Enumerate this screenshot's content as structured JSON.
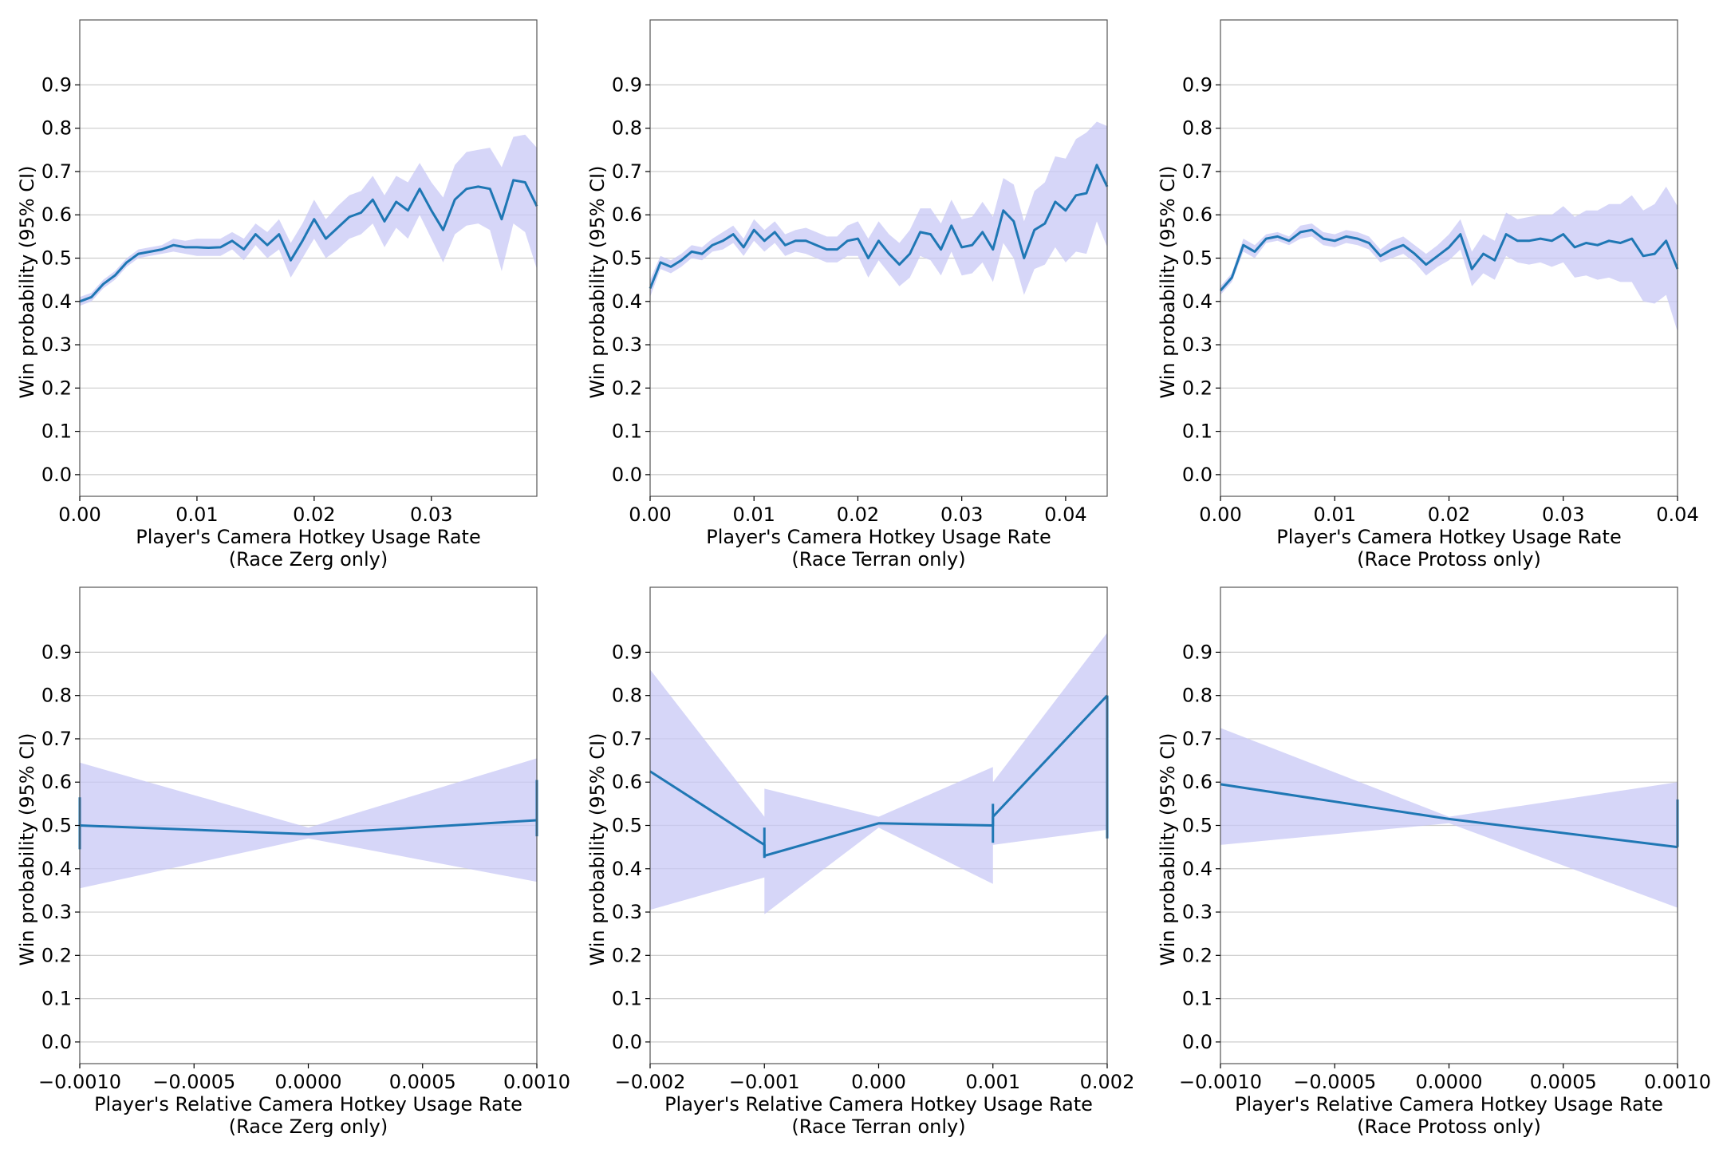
{
  "colors": {
    "line": "#1f77b4",
    "band": "#c8c8f5",
    "grid": "#cccccc",
    "axis": "#555555"
  },
  "chart_data": [
    {
      "type": "line",
      "xlabel": "Player's Camera Hotkey Usage Rate",
      "xlabel2": "(Race Zerg only)",
      "ylabel": "Win probability (95% CI)",
      "xlim": [
        0,
        0.039
      ],
      "ylim": [
        -0.05,
        1.05
      ],
      "xticks": [
        0,
        0.01,
        0.02,
        0.03
      ],
      "xtick_labels": [
        "0.00",
        "0.01",
        "0.02",
        "0.03"
      ],
      "yticks": [
        0,
        0.1,
        0.2,
        0.3,
        0.4,
        0.5,
        0.6,
        0.7,
        0.8,
        0.9
      ],
      "ytick_labels": [
        "0.0",
        "0.1",
        "0.2",
        "0.3",
        "0.4",
        "0.5",
        "0.6",
        "0.7",
        "0.8",
        "0.9"
      ],
      "grid": "y",
      "x": [
        0,
        0.001,
        0.002,
        0.003,
        0.004,
        0.005,
        0.006,
        0.007,
        0.008,
        0.009,
        0.01,
        0.011,
        0.012,
        0.013,
        0.014,
        0.015,
        0.016,
        0.017,
        0.018,
        0.019,
        0.02,
        0.021,
        0.022,
        0.023,
        0.024,
        0.025,
        0.026,
        0.027,
        0.028,
        0.029,
        0.03,
        0.031,
        0.032,
        0.033,
        0.034,
        0.035,
        0.036,
        0.037,
        0.038,
        0.039
      ],
      "y": [
        0.4,
        0.41,
        0.44,
        0.46,
        0.49,
        0.51,
        0.515,
        0.52,
        0.53,
        0.525,
        0.525,
        0.524,
        0.525,
        0.54,
        0.52,
        0.555,
        0.53,
        0.555,
        0.495,
        0.54,
        0.59,
        0.545,
        0.57,
        0.595,
        0.605,
        0.635,
        0.585,
        0.63,
        0.61,
        0.66,
        0.61,
        0.565,
        0.635,
        0.66,
        0.665,
        0.66,
        0.59,
        0.68,
        0.675,
        0.62
      ],
      "ci_low": [
        0.39,
        0.4,
        0.43,
        0.45,
        0.48,
        0.5,
        0.505,
        0.51,
        0.515,
        0.51,
        0.505,
        0.505,
        0.505,
        0.52,
        0.495,
        0.53,
        0.5,
        0.52,
        0.455,
        0.5,
        0.545,
        0.5,
        0.52,
        0.545,
        0.555,
        0.58,
        0.525,
        0.57,
        0.545,
        0.6,
        0.545,
        0.49,
        0.555,
        0.575,
        0.58,
        0.565,
        0.47,
        0.58,
        0.56,
        0.475
      ],
      "ci_high": [
        0.41,
        0.42,
        0.45,
        0.47,
        0.5,
        0.52,
        0.525,
        0.53,
        0.545,
        0.54,
        0.545,
        0.545,
        0.545,
        0.56,
        0.545,
        0.58,
        0.56,
        0.59,
        0.535,
        0.58,
        0.635,
        0.59,
        0.62,
        0.645,
        0.655,
        0.69,
        0.645,
        0.69,
        0.675,
        0.72,
        0.675,
        0.64,
        0.715,
        0.745,
        0.75,
        0.755,
        0.71,
        0.78,
        0.785,
        0.755
      ]
    },
    {
      "type": "line",
      "xlabel": "Player's Camera Hotkey Usage Rate",
      "xlabel2": "(Race Terran only)",
      "ylabel": "Win probability (95% CI)",
      "xlim": [
        0,
        0.044
      ],
      "ylim": [
        -0.05,
        1.05
      ],
      "xticks": [
        0,
        0.01,
        0.02,
        0.03,
        0.04
      ],
      "xtick_labels": [
        "0.00",
        "0.01",
        "0.02",
        "0.03",
        "0.04"
      ],
      "yticks": [
        0,
        0.1,
        0.2,
        0.3,
        0.4,
        0.5,
        0.6,
        0.7,
        0.8,
        0.9
      ],
      "ytick_labels": [
        "0.0",
        "0.1",
        "0.2",
        "0.3",
        "0.4",
        "0.5",
        "0.6",
        "0.7",
        "0.8",
        "0.9"
      ],
      "grid": "y",
      "x": [
        0,
        0.001,
        0.002,
        0.003,
        0.004,
        0.005,
        0.006,
        0.007,
        0.008,
        0.009,
        0.01,
        0.011,
        0.012,
        0.013,
        0.014,
        0.015,
        0.016,
        0.017,
        0.018,
        0.019,
        0.02,
        0.021,
        0.022,
        0.023,
        0.024,
        0.025,
        0.026,
        0.027,
        0.028,
        0.029,
        0.03,
        0.031,
        0.032,
        0.033,
        0.034,
        0.035,
        0.036,
        0.037,
        0.038,
        0.039,
        0.04,
        0.041,
        0.042,
        0.043,
        0.044
      ],
      "y": [
        0.43,
        0.49,
        0.48,
        0.495,
        0.515,
        0.51,
        0.53,
        0.54,
        0.555,
        0.525,
        0.565,
        0.54,
        0.56,
        0.53,
        0.54,
        0.54,
        0.53,
        0.52,
        0.52,
        0.54,
        0.545,
        0.5,
        0.54,
        0.51,
        0.485,
        0.51,
        0.56,
        0.555,
        0.52,
        0.575,
        0.525,
        0.53,
        0.56,
        0.52,
        0.61,
        0.585,
        0.5,
        0.565,
        0.58,
        0.63,
        0.61,
        0.645,
        0.65,
        0.715,
        0.665
      ],
      "ci_low": [
        0.41,
        0.475,
        0.465,
        0.48,
        0.5,
        0.495,
        0.515,
        0.52,
        0.535,
        0.505,
        0.54,
        0.515,
        0.535,
        0.505,
        0.515,
        0.51,
        0.5,
        0.49,
        0.49,
        0.505,
        0.505,
        0.455,
        0.495,
        0.465,
        0.435,
        0.455,
        0.505,
        0.495,
        0.46,
        0.515,
        0.46,
        0.465,
        0.49,
        0.445,
        0.535,
        0.5,
        0.415,
        0.475,
        0.485,
        0.525,
        0.49,
        0.515,
        0.51,
        0.585,
        0.525
      ],
      "ci_high": [
        0.45,
        0.505,
        0.495,
        0.51,
        0.53,
        0.525,
        0.545,
        0.56,
        0.575,
        0.545,
        0.59,
        0.565,
        0.585,
        0.555,
        0.565,
        0.57,
        0.56,
        0.55,
        0.55,
        0.575,
        0.585,
        0.545,
        0.585,
        0.555,
        0.535,
        0.565,
        0.615,
        0.615,
        0.58,
        0.635,
        0.59,
        0.595,
        0.63,
        0.595,
        0.685,
        0.67,
        0.585,
        0.655,
        0.675,
        0.735,
        0.73,
        0.775,
        0.79,
        0.815,
        0.805
      ]
    },
    {
      "type": "line",
      "xlabel": "Player's Camera Hotkey Usage Rate",
      "xlabel2": "(Race Protoss only)",
      "ylabel": "Win probability (95% CI)",
      "xlim": [
        0,
        0.04
      ],
      "ylim": [
        -0.05,
        1.05
      ],
      "xticks": [
        0,
        0.01,
        0.02,
        0.03,
        0.04
      ],
      "xtick_labels": [
        "0.00",
        "0.01",
        "0.02",
        "0.03",
        "0.04"
      ],
      "yticks": [
        0,
        0.1,
        0.2,
        0.3,
        0.4,
        0.5,
        0.6,
        0.7,
        0.8,
        0.9
      ],
      "ytick_labels": [
        "0.0",
        "0.1",
        "0.2",
        "0.3",
        "0.4",
        "0.5",
        "0.6",
        "0.7",
        "0.8",
        "0.9"
      ],
      "grid": "y",
      "x": [
        0,
        0.001,
        0.002,
        0.003,
        0.004,
        0.005,
        0.006,
        0.007,
        0.008,
        0.009,
        0.01,
        0.011,
        0.012,
        0.013,
        0.014,
        0.015,
        0.016,
        0.017,
        0.018,
        0.019,
        0.02,
        0.021,
        0.022,
        0.023,
        0.024,
        0.025,
        0.026,
        0.027,
        0.028,
        0.029,
        0.03,
        0.031,
        0.032,
        0.033,
        0.034,
        0.035,
        0.036,
        0.037,
        0.038,
        0.039,
        0.04
      ],
      "y": [
        0.425,
        0.455,
        0.53,
        0.515,
        0.545,
        0.55,
        0.54,
        0.56,
        0.565,
        0.545,
        0.54,
        0.55,
        0.545,
        0.535,
        0.505,
        0.52,
        0.53,
        0.51,
        0.485,
        0.505,
        0.525,
        0.555,
        0.475,
        0.51,
        0.495,
        0.555,
        0.54,
        0.54,
        0.545,
        0.54,
        0.555,
        0.525,
        0.535,
        0.53,
        0.54,
        0.535,
        0.545,
        0.505,
        0.51,
        0.54,
        0.475
      ],
      "ci_low": [
        0.415,
        0.445,
        0.515,
        0.5,
        0.535,
        0.54,
        0.53,
        0.545,
        0.55,
        0.53,
        0.525,
        0.535,
        0.53,
        0.52,
        0.49,
        0.5,
        0.51,
        0.49,
        0.46,
        0.48,
        0.495,
        0.52,
        0.435,
        0.465,
        0.45,
        0.505,
        0.49,
        0.485,
        0.49,
        0.48,
        0.49,
        0.455,
        0.46,
        0.45,
        0.455,
        0.445,
        0.445,
        0.4,
        0.395,
        0.415,
        0.33
      ],
      "ci_high": [
        0.435,
        0.465,
        0.545,
        0.53,
        0.555,
        0.56,
        0.55,
        0.575,
        0.58,
        0.56,
        0.555,
        0.565,
        0.56,
        0.55,
        0.52,
        0.54,
        0.55,
        0.53,
        0.51,
        0.53,
        0.555,
        0.59,
        0.515,
        0.555,
        0.54,
        0.605,
        0.59,
        0.595,
        0.6,
        0.6,
        0.62,
        0.595,
        0.61,
        0.61,
        0.625,
        0.625,
        0.645,
        0.61,
        0.625,
        0.665,
        0.62
      ]
    },
    {
      "type": "line",
      "xlabel": "Player's Relative Camera Hotkey Usage Rate",
      "xlabel2": "(Race Zerg only)",
      "ylabel": "Win probability (95% CI)",
      "xlim": [
        -0.001,
        0.001
      ],
      "ylim": [
        -0.05,
        1.05
      ],
      "xticks": [
        -0.001,
        -0.0005,
        0,
        0.0005,
        0.001
      ],
      "xtick_labels": [
        "−0.0010",
        "−0.0005",
        "0.0000",
        "0.0005",
        "0.0010"
      ],
      "yticks": [
        0,
        0.1,
        0.2,
        0.3,
        0.4,
        0.5,
        0.6,
        0.7,
        0.8,
        0.9
      ],
      "ytick_labels": [
        "0.0",
        "0.1",
        "0.2",
        "0.3",
        "0.4",
        "0.5",
        "0.6",
        "0.7",
        "0.8",
        "0.9"
      ],
      "grid": "y",
      "x": [
        -0.001,
        0,
        0.001
      ],
      "y": [
        0.5,
        0.48,
        0.512
      ],
      "ci_low": [
        0.355,
        0.47,
        0.37
      ],
      "ci_high": [
        0.645,
        0.495,
        0.655
      ],
      "errorbars": [
        {
          "x": -0.001,
          "low": 0.445,
          "high": 0.565
        },
        {
          "x": 0.001,
          "low": 0.475,
          "high": 0.605
        }
      ]
    },
    {
      "type": "line",
      "xlabel": "Player's Relative Camera Hotkey Usage Rate",
      "xlabel2": "(Race Terran only)",
      "ylabel": "Win probability (95% CI)",
      "xlim": [
        -0.002,
        0.002
      ],
      "ylim": [
        -0.05,
        1.05
      ],
      "xticks": [
        -0.002,
        -0.001,
        0,
        0.001,
        0.002
      ],
      "xtick_labels": [
        "−0.002",
        "−0.001",
        "0.000",
        "0.001",
        "0.002"
      ],
      "yticks": [
        0,
        0.1,
        0.2,
        0.3,
        0.4,
        0.5,
        0.6,
        0.7,
        0.8,
        0.9
      ],
      "ytick_labels": [
        "0.0",
        "0.1",
        "0.2",
        "0.3",
        "0.4",
        "0.5",
        "0.6",
        "0.7",
        "0.8",
        "0.9"
      ],
      "grid": "y",
      "x": [
        -0.002,
        -0.001,
        -0.001,
        0,
        0.001,
        0.001,
        0.002
      ],
      "y": [
        0.625,
        0.455,
        0.43,
        0.505,
        0.5,
        0.52,
        0.8
      ],
      "ci_low": [
        0.305,
        0.38,
        0.295,
        0.495,
        0.365,
        0.455,
        0.49
      ],
      "ci_high": [
        0.86,
        0.52,
        0.585,
        0.52,
        0.635,
        0.6,
        0.945
      ],
      "errorbars": [
        {
          "x": -0.001,
          "low": 0.425,
          "high": 0.495
        },
        {
          "x": 0.001,
          "low": 0.46,
          "high": 0.55
        },
        {
          "x": 0.002,
          "low": 0.47,
          "high": 0.8
        }
      ]
    },
    {
      "type": "line",
      "xlabel": "Player's Relative Camera Hotkey Usage Rate",
      "xlabel2": "(Race Protoss only)",
      "ylabel": "Win probability (95% CI)",
      "xlim": [
        -0.001,
        0.001
      ],
      "ylim": [
        -0.05,
        1.05
      ],
      "xticks": [
        -0.001,
        -0.0005,
        0,
        0.0005,
        0.001
      ],
      "xtick_labels": [
        "−0.0010",
        "−0.0005",
        "0.0000",
        "0.0005",
        "0.0010"
      ],
      "yticks": [
        0,
        0.1,
        0.2,
        0.3,
        0.4,
        0.5,
        0.6,
        0.7,
        0.8,
        0.9
      ],
      "ytick_labels": [
        "0.0",
        "0.1",
        "0.2",
        "0.3",
        "0.4",
        "0.5",
        "0.6",
        "0.7",
        "0.8",
        "0.9"
      ],
      "grid": "y",
      "x": [
        -0.001,
        0,
        0.001
      ],
      "y": [
        0.595,
        0.515,
        0.45
      ],
      "ci_low": [
        0.455,
        0.505,
        0.31
      ],
      "ci_high": [
        0.725,
        0.52,
        0.6
      ],
      "errorbars": [
        {
          "x": 0.001,
          "low": 0.45,
          "high": 0.56
        }
      ]
    }
  ]
}
